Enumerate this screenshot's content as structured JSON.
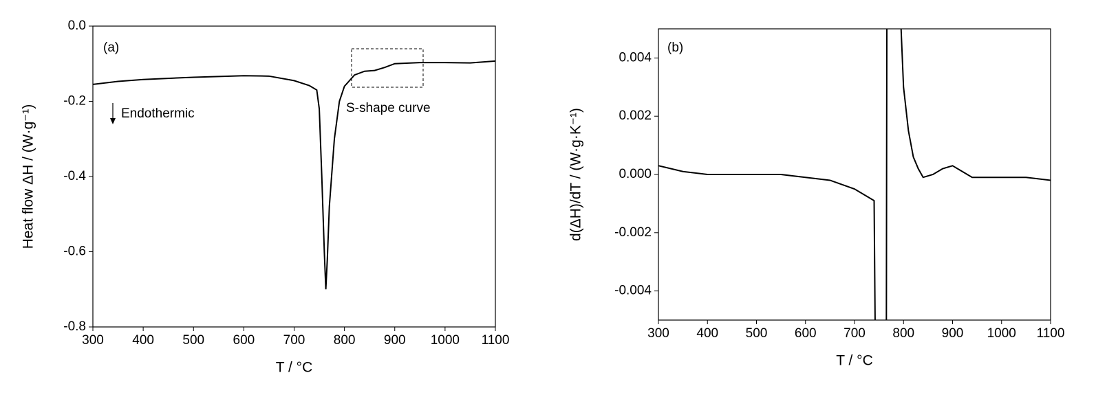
{
  "chart_data": [
    {
      "type": "line",
      "xlabel": "T / °C",
      "ylabel": "Heat flow ΔH / (W·g⁻¹)",
      "annotations": [
        "(a)",
        "Endothermic",
        "S-shape curve"
      ],
      "xlim": [
        300,
        1100
      ],
      "xticks": [
        300,
        400,
        500,
        600,
        700,
        800,
        900,
        1000,
        1100
      ],
      "ylim": [
        -0.8,
        0
      ],
      "yticks": [
        -0.8,
        -0.6,
        -0.4,
        -0.2,
        {
          "value": 0,
          "label": "0.0"
        }
      ],
      "color": "#000000",
      "x": [
        300,
        350,
        400,
        500,
        600,
        650,
        700,
        730,
        745,
        750,
        755,
        760,
        763,
        766,
        770,
        780,
        790,
        800,
        820,
        840,
        860,
        880,
        900,
        950,
        1000,
        1050,
        1100
      ],
      "values": [
        -0.155,
        -0.147,
        -0.142,
        -0.136,
        -0.132,
        -0.133,
        -0.145,
        -0.158,
        -0.17,
        -0.22,
        -0.4,
        -0.6,
        -0.7,
        -0.62,
        -0.48,
        -0.3,
        -0.2,
        -0.16,
        -0.13,
        -0.12,
        -0.118,
        -0.11,
        -0.1,
        -0.097,
        -0.097,
        -0.098,
        -0.093
      ]
    },
    {
      "type": "line",
      "xlabel": "T / °C",
      "ylabel": "d(ΔH)/dT / (W·g·K⁻¹)",
      "annotations": [
        "(b)"
      ],
      "xlim": [
        300,
        1100
      ],
      "xticks": [
        300,
        400,
        500,
        600,
        700,
        800,
        900,
        1000,
        1100
      ],
      "ylim": [
        -0.005,
        0.005
      ],
      "yticks": [
        -0.004,
        -0.002,
        {
          "value": 0,
          "label": "0.000"
        },
        0.002,
        0.004
      ],
      "color": "#000000",
      "x": [
        300,
        350,
        400,
        500,
        550,
        600,
        650,
        700,
        730,
        740,
        742,
        750,
        765,
        766,
        780,
        795,
        800,
        810,
        820,
        830,
        840,
        860,
        880,
        900,
        920,
        940,
        1000,
        1050,
        1100
      ],
      "values": [
        0.0003,
        0.0001,
        0,
        0,
        0,
        -0.0001,
        -0.0002,
        -0.0005,
        -0.0008,
        -0.0009,
        -0.005,
        null,
        -0.005,
        0.005,
        null,
        0.005,
        0.003,
        0.0015,
        0.0006,
        0.0002,
        -0.0001,
        0,
        0.0002,
        0.0003,
        0.0001,
        -0.0001,
        -0.0001,
        -0.0001,
        -0.0002
      ]
    }
  ]
}
